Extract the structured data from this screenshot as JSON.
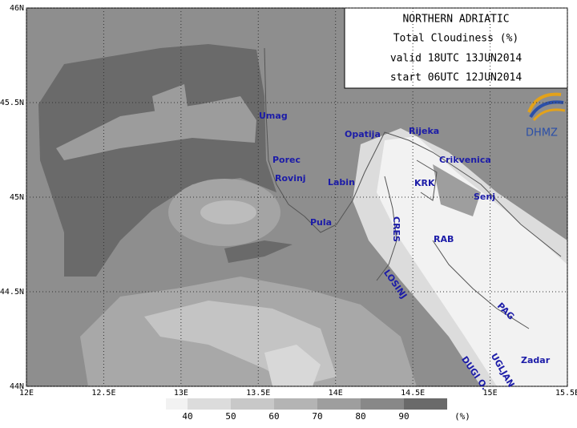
{
  "header": {
    "lines": [
      "NORTHERN ADRIATIC",
      "Total Cloudiness (%)",
      "valid 18UTC 13JUN2014",
      "start 06UTC 12JUN2014"
    ]
  },
  "logo": "DHMZ",
  "axes": {
    "xlim": [
      12,
      15.5
    ],
    "ylim": [
      44,
      46
    ],
    "xticks": [
      {
        "value": 12,
        "label": "12E"
      },
      {
        "value": 12.5,
        "label": "12.5E"
      },
      {
        "value": 13,
        "label": "13E"
      },
      {
        "value": 13.5,
        "label": "13.5E"
      },
      {
        "value": 14,
        "label": "14E"
      },
      {
        "value": 14.5,
        "label": "14.5E"
      },
      {
        "value": 15,
        "label": "15E"
      },
      {
        "value": 15.5,
        "label": "15.5E"
      }
    ],
    "yticks": [
      {
        "value": 44,
        "label": "44N"
      },
      {
        "value": 44.5,
        "label": "44.5N"
      },
      {
        "value": 45,
        "label": "45N"
      },
      {
        "value": 45.5,
        "label": "45.5N"
      },
      {
        "value": 46,
        "label": "46N"
      }
    ]
  },
  "legend": {
    "levels": [
      40,
      50,
      60,
      70,
      80,
      90
    ],
    "unit": "(%)",
    "colors": [
      "#f2f2f2",
      "#dcdcdc",
      "#c8c8c8",
      "#b4b4b4",
      "#9e9e9e",
      "#888888",
      "#6a6a6a"
    ]
  },
  "places": [
    "Umag",
    "Porec",
    "Rovinj",
    "Pula",
    "Labin",
    "Opatija",
    "Rijeka",
    "Crikvenica",
    "KRK",
    "Senj",
    "CRES",
    "RAB",
    "LOSINJ",
    "PAG",
    "Zadar",
    "UGLJAN",
    "DUGI O."
  ]
}
